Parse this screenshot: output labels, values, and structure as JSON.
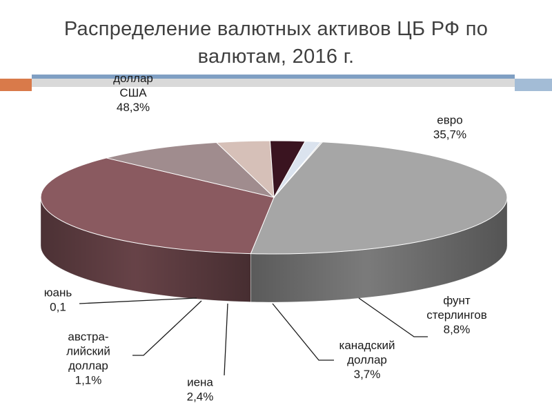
{
  "title_lines": [
    "Распределение валютных активов ЦБ РФ по",
    "валютам, 2016 г."
  ],
  "chart_data": {
    "type": "pie",
    "title": "Распределение валютных активов ЦБ РФ по валютам, 2016 г.",
    "series": [
      {
        "label_lines": [
          "доллар",
          "США",
          "48,3%"
        ],
        "value": 48.3,
        "color": "#a6a6a6"
      },
      {
        "label_lines": [
          "евро",
          "35,7%"
        ],
        "value": 35.7,
        "color": "#8a5a60"
      },
      {
        "label_lines": [
          "фунт",
          "стерлингов",
          "8,8%"
        ],
        "value": 8.8,
        "color": "#a08c8e"
      },
      {
        "label_lines": [
          "канадский",
          "доллар",
          "3,7%"
        ],
        "value": 3.7,
        "color": "#d6c0b8"
      },
      {
        "label_lines": [
          "иена",
          "2,4%"
        ],
        "value": 2.4,
        "color": "#3a1420"
      },
      {
        "label_lines": [
          "австра-",
          "лийский",
          "доллар",
          "1,1%"
        ],
        "value": 1.1,
        "color": "#dbe3ee"
      },
      {
        "label_lines": [
          "юань",
          "0,1"
        ],
        "value": 0.1,
        "color": "#c8c8c8"
      }
    ],
    "legend": "none"
  }
}
